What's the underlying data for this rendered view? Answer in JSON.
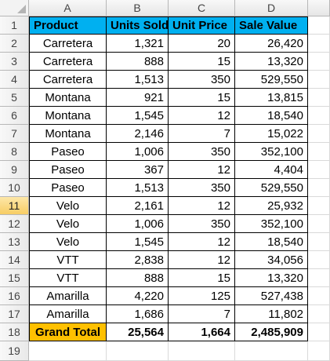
{
  "columns": [
    "A",
    "B",
    "C",
    "D"
  ],
  "header": {
    "product": "Product",
    "units_sold": "Units Sold",
    "unit_price": "Unit Price",
    "sale_value": "Sale Value"
  },
  "rows": [
    {
      "num": "2",
      "product": "Carretera",
      "units": "1,321",
      "price": "20",
      "value": "26,420"
    },
    {
      "num": "3",
      "product": "Carretera",
      "units": "888",
      "price": "15",
      "value": "13,320"
    },
    {
      "num": "4",
      "product": "Carretera",
      "units": "1,513",
      "price": "350",
      "value": "529,550"
    },
    {
      "num": "5",
      "product": "Montana",
      "units": "921",
      "price": "15",
      "value": "13,815"
    },
    {
      "num": "6",
      "product": "Montana",
      "units": "1,545",
      "price": "12",
      "value": "18,540"
    },
    {
      "num": "7",
      "product": "Montana",
      "units": "2,146",
      "price": "7",
      "value": "15,022"
    },
    {
      "num": "8",
      "product": "Paseo",
      "units": "1,006",
      "price": "350",
      "value": "352,100"
    },
    {
      "num": "9",
      "product": "Paseo",
      "units": "367",
      "price": "12",
      "value": "4,404"
    },
    {
      "num": "10",
      "product": "Paseo",
      "units": "1,513",
      "price": "350",
      "value": "529,550"
    },
    {
      "num": "11",
      "product": "Velo",
      "units": "2,161",
      "price": "12",
      "value": "25,932"
    },
    {
      "num": "12",
      "product": "Velo",
      "units": "1,006",
      "price": "350",
      "value": "352,100"
    },
    {
      "num": "13",
      "product": "Velo",
      "units": "1,545",
      "price": "12",
      "value": "18,540"
    },
    {
      "num": "14",
      "product": "VTT",
      "units": "2,838",
      "price": "12",
      "value": "34,056"
    },
    {
      "num": "15",
      "product": "VTT",
      "units": "888",
      "price": "15",
      "value": "13,320"
    },
    {
      "num": "16",
      "product": "Amarilla",
      "units": "4,220",
      "price": "125",
      "value": "527,438"
    },
    {
      "num": "17",
      "product": "Amarilla",
      "units": "1,686",
      "price": "7",
      "value": "11,802"
    }
  ],
  "total": {
    "num": "18",
    "label": "Grand Total",
    "units": "25,564",
    "price": "1,664",
    "value": "2,485,909"
  },
  "header_row_num": "1",
  "last_row_num": "19",
  "active_row": "11",
  "colors": {
    "header_fill": "#00b0f0",
    "total_fill": "#ffc000",
    "active_row_header": "#f7cd64"
  }
}
